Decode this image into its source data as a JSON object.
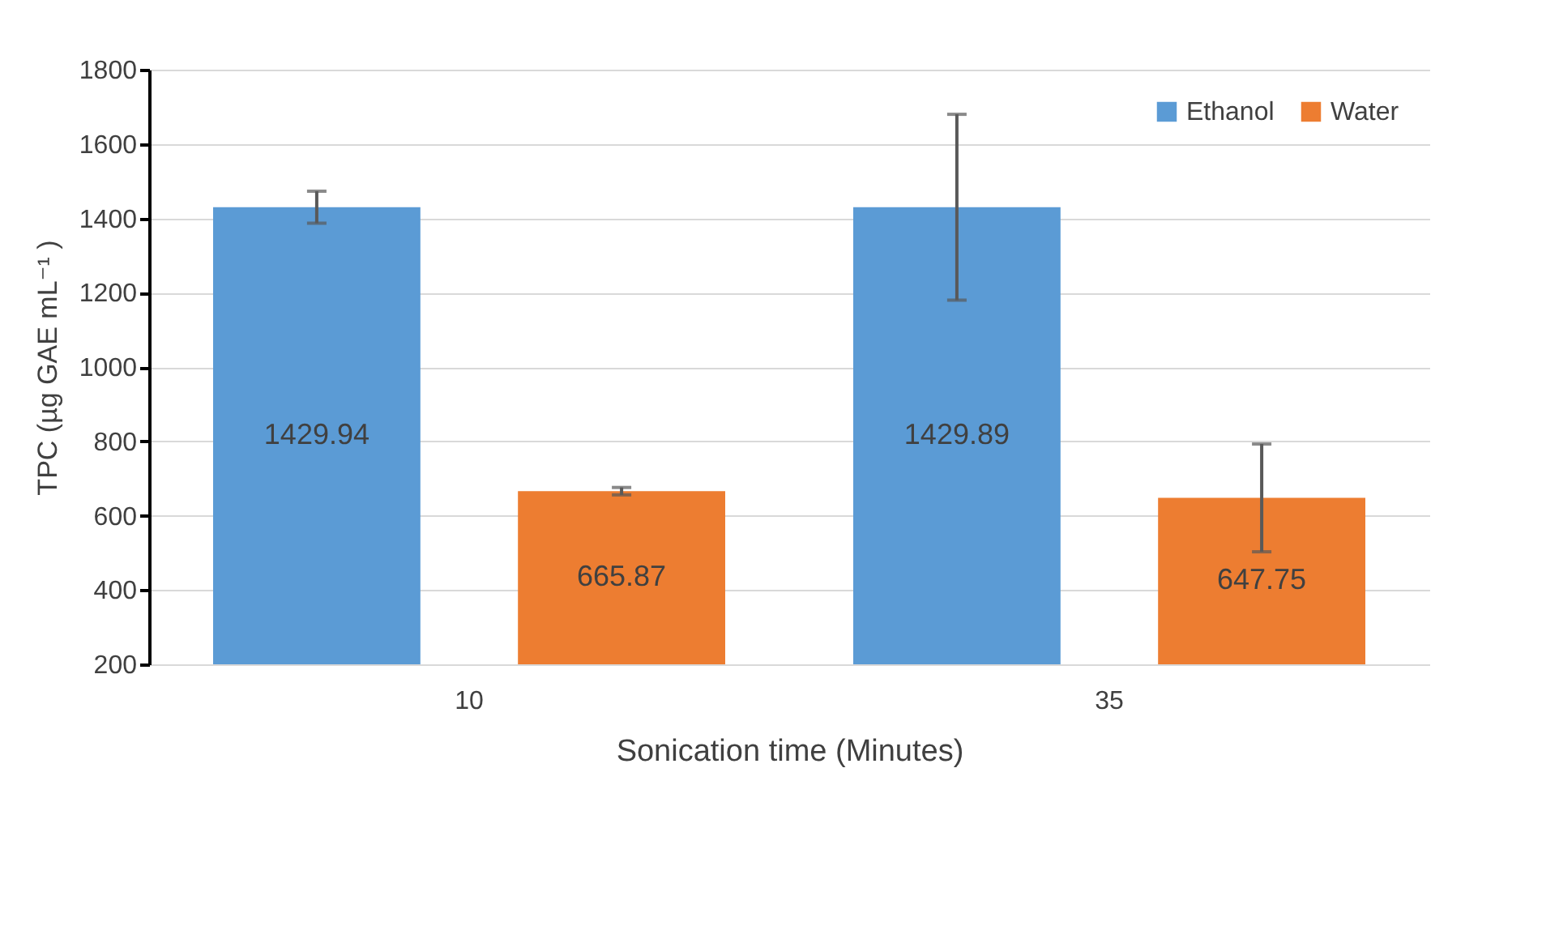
{
  "chart_data": {
    "type": "bar",
    "xlabel": "Sonication time (Minutes)",
    "ylabel": "TPC (µg GAE mL⁻¹ )",
    "categories": [
      "10",
      "35"
    ],
    "series": [
      {
        "name": "Ethanol",
        "color": "#5b9bd5",
        "values": [
          1429.94,
          1429.89
        ],
        "errors": [
          43,
          250
        ]
      },
      {
        "name": "Water",
        "color": "#ed7d31",
        "values": [
          665.87,
          647.75
        ],
        "errors": [
          10,
          145
        ]
      }
    ],
    "ylim": [
      200,
      1800
    ],
    "yticks": [
      200,
      400,
      600,
      800,
      1000,
      1200,
      1400,
      1600,
      1800
    ],
    "grid": "y",
    "legend": "top right",
    "data_labels": true
  }
}
